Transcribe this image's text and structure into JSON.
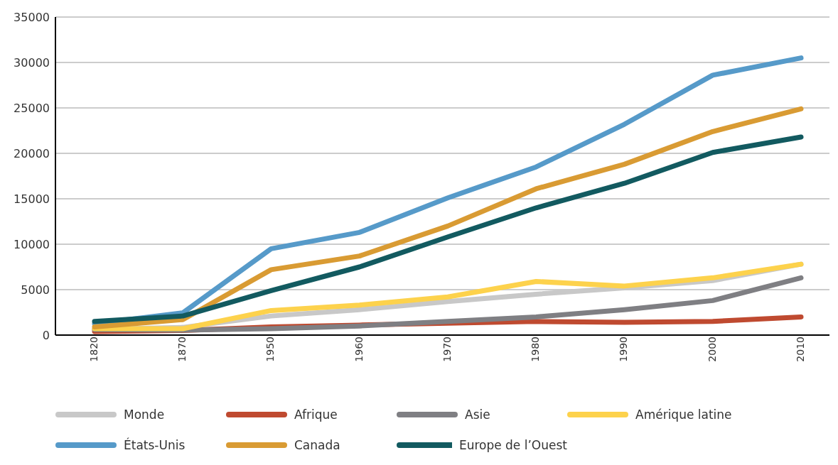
{
  "chart_data": {
    "type": "line",
    "categories": [
      "1820",
      "1870",
      "1950",
      "1960",
      "1970",
      "1980",
      "1990",
      "2000",
      "2010"
    ],
    "ylim": [
      0,
      35000
    ],
    "yticks": [
      0,
      5000,
      10000,
      15000,
      20000,
      25000,
      30000,
      35000
    ],
    "grid": "y",
    "legend": "bottom",
    "series": [
      {
        "name": "Monde",
        "color": "#c8c8c8",
        "values": [
          650,
          850,
          2100,
          2800,
          3700,
          4500,
          5200,
          6000,
          7800
        ]
      },
      {
        "name": "Afrique",
        "color": "#bf4a30",
        "values": [
          400,
          500,
          900,
          1100,
          1300,
          1500,
          1400,
          1500,
          2000
        ]
      },
      {
        "name": "Asie",
        "color": "#7f7f83",
        "values": [
          600,
          550,
          700,
          1000,
          1500,
          2000,
          2800,
          3800,
          6300
        ]
      },
      {
        "name": "Amérique latine",
        "color": "#fdd24c",
        "values": [
          700,
          700,
          2700,
          3300,
          4200,
          5900,
          5400,
          6300,
          7800
        ]
      },
      {
        "name": "États-Unis",
        "color": "#569ac9",
        "values": [
          1250,
          2450,
          9500,
          11300,
          15100,
          18500,
          23200,
          28600,
          30500
        ]
      },
      {
        "name": "Canada",
        "color": "#d99b33",
        "values": [
          900,
          1700,
          7200,
          8700,
          12000,
          16100,
          18800,
          22400,
          24900
        ]
      },
      {
        "name": "Europe de l’Ouest",
        "color": "#125a60",
        "values": [
          1500,
          2100,
          4900,
          7500,
          10800,
          14000,
          16700,
          20100,
          21800
        ]
      }
    ]
  }
}
